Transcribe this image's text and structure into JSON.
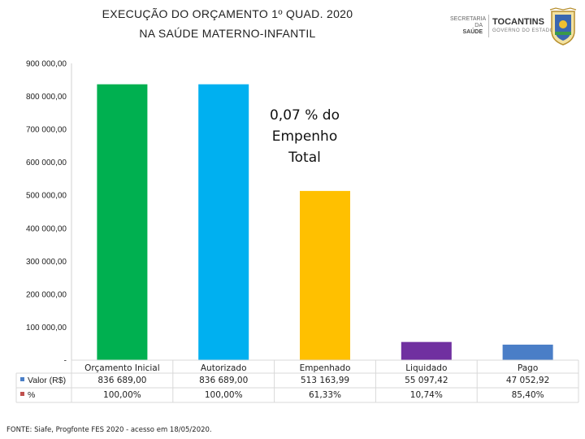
{
  "title": {
    "line1": "EXECUÇÃO DO ORÇAMENTO 1º QUAD. 2020",
    "line2": "NA SAÚDE MATERNO-INFANTIL"
  },
  "logos": {
    "secretaria_line1": "SECRETARIA",
    "secretaria_line2": "DA",
    "secretaria_line3": "SAÚDE",
    "brand": "TOCANTINS",
    "government": "GOVERNO DO ESTADO",
    "crest_icon": "state-coat-of-arms-icon"
  },
  "chart_data": {
    "type": "bar",
    "categories": [
      "Orçamento Inicial",
      "Autorizado",
      "Empenhado",
      "Liquidado",
      "Pago"
    ],
    "values": [
      836689.0,
      836689.0,
      513163.99,
      55097.42,
      47052.92
    ],
    "colors": [
      "#00B050",
      "#00B0F0",
      "#FFC000",
      "#7030A0",
      "#4A7EC7"
    ],
    "ylim": [
      0,
      900000
    ],
    "yticks": [
      {
        "value": 0,
        "label": "-"
      },
      {
        "value": 100000,
        "label": "100 000,00"
      },
      {
        "value": 200000,
        "label": "200 000,00"
      },
      {
        "value": 300000,
        "label": "300 000,00"
      },
      {
        "value": 400000,
        "label": "400 000,00"
      },
      {
        "value": 500000,
        "label": "500 000,00"
      },
      {
        "value": 600000,
        "label": "600 000,00"
      },
      {
        "value": 700000,
        "label": "700 000,00"
      },
      {
        "value": 800000,
        "label": "800 000,00"
      },
      {
        "value": 900000,
        "label": "900 000,00"
      }
    ],
    "grid": false,
    "annotation": [
      "0,07 % do",
      "Empenho",
      "Total"
    ],
    "table": {
      "rows": [
        {
          "label": "Valor (R$)",
          "legend_color": "#4A7EC7",
          "cells": [
            "836 689,00",
            "836 689,00",
            "513 163,99",
            "55 097,42",
            "47 052,92"
          ]
        },
        {
          "label": "%",
          "legend_color": "#C0504D",
          "cells": [
            "100,00%",
            "100,00%",
            "61,33%",
            "10,74%",
            "85,40%"
          ]
        }
      ]
    }
  },
  "source": "FONTE: Siafe, Progfonte FES 2020 - acesso em 18/05/2020."
}
